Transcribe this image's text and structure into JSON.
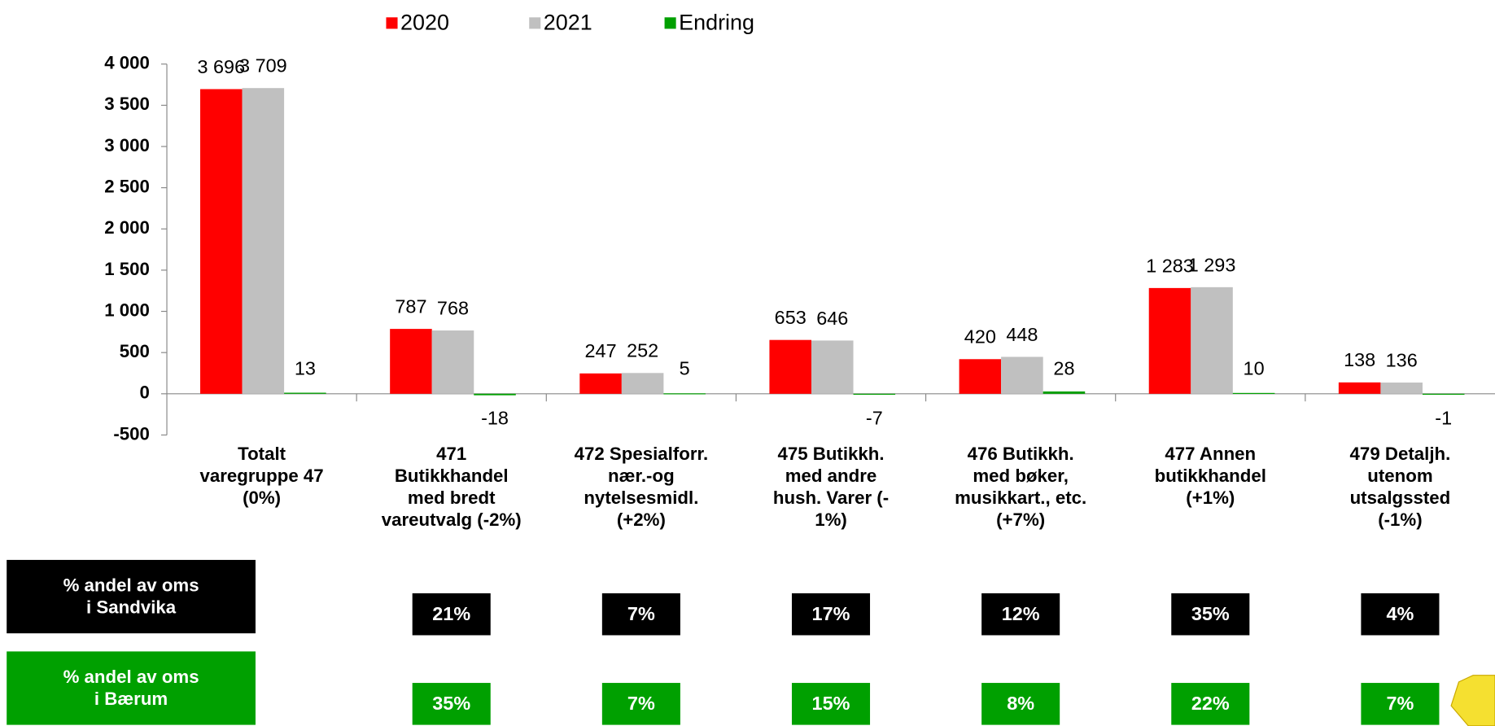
{
  "chart_data": {
    "type": "bar",
    "categories": [
      "Totalt\nvaregruppe 47\n(0%)",
      "471\nButikkhandel\nmed bredt\nvareutvalg (-2%)",
      "472 Spesialforr.\nnær.-og\nnytelsesmidl.\n(+2%)",
      "475 Butikkh.\nmed andre\nhush. Varer (-\n1%)",
      "476 Butikkh.\nmed bøker,\nmusikkart., etc.\n(+7%)",
      "477 Annen\nbutikkhandel\n(+1%)",
      "479 Detaljh.\nutenom\nutsalgssted\n(-1%)"
    ],
    "series": [
      {
        "name": "2020",
        "color": "#ff0000",
        "values": [
          3696,
          787,
          247,
          653,
          420,
          1283,
          138
        ],
        "value_labels": [
          "3 696",
          "787",
          "247",
          "653",
          "420",
          "1 283",
          "138"
        ]
      },
      {
        "name": "2021",
        "color": "#c0c0c0",
        "values": [
          3709,
          768,
          252,
          646,
          448,
          1293,
          136
        ],
        "value_labels": [
          "3 709",
          "768",
          "252",
          "646",
          "448",
          "1 293",
          "136"
        ]
      },
      {
        "name": "Endring",
        "color": "#00a000",
        "values": [
          13,
          -18,
          5,
          -7,
          28,
          10,
          -1
        ]
      }
    ],
    "ylim": [
      -500,
      4000
    ],
    "yticks": [
      -500,
      0,
      500,
      {
        "value": 1000,
        "label": "1 000"
      },
      {
        "value": 1500,
        "label": "1 500"
      },
      {
        "value": 2000,
        "label": "2 000"
      },
      {
        "value": 2500,
        "label": "2 500"
      },
      {
        "value": 3000,
        "label": "3 000"
      },
      {
        "value": 3500,
        "label": "3 500"
      },
      {
        "value": 4000,
        "label": "4 000"
      }
    ],
    "legend": "top"
  },
  "share_table": {
    "rows": [
      {
        "label": "% andel av oms\ni Sandvika",
        "color": "#000000",
        "values": [
          "21%",
          "7%",
          "17%",
          "12%",
          "35%",
          "4%"
        ]
      },
      {
        "label": "% andel av oms\ni Bærum",
        "color": "#00a000",
        "values": [
          "35%",
          "7%",
          "15%",
          "8%",
          "22%",
          "7%"
        ]
      }
    ]
  }
}
